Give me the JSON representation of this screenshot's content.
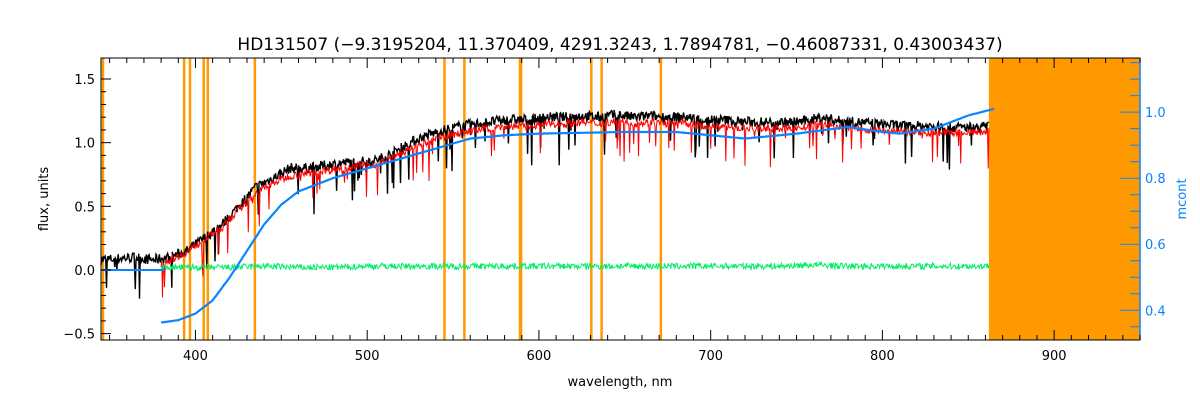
{
  "chart_data": {
    "type": "line",
    "title": "HD131507    (−9.3195204, 11.370409, 4291.3243, 1.7894781, −0.46087331, 0.43003437)",
    "xlabel": "wavelength, nm",
    "ylabel": "flux, units",
    "ylabel_right": "mcont",
    "xlim": [
      345,
      950
    ],
    "ylim": [
      -0.55,
      1.665
    ],
    "ylim_right": [
      0.31,
      1.164
    ],
    "xticks": [
      400,
      500,
      600,
      700,
      800,
      900
    ],
    "xtick_labels": [
      "400",
      "500",
      "600",
      "700",
      "800",
      "900"
    ],
    "yticks": [
      -0.5,
      0.0,
      0.5,
      1.0,
      1.5
    ],
    "ytick_labels": [
      "−0.5",
      "0.0",
      "0.5",
      "1.0",
      "1.5"
    ],
    "yticks_right": [
      0.4,
      0.6,
      0.8,
      1.0
    ],
    "ytick_labels_right": [
      "0.4",
      "0.6",
      "0.8",
      "1.0"
    ],
    "masked_lines_nm": [
      393.4,
      396.8,
      404.8,
      407.2,
      434.6,
      545,
      556.6,
      589.0,
      589.6,
      630.5,
      636.5,
      671
    ],
    "masked_region_nm": [
      862,
      950
    ],
    "colors": {
      "observed": "#000000",
      "model": "#ff0000",
      "residual": "#00ee66",
      "continuum": "#0a84ff",
      "mask": "#ff9900"
    },
    "series": [
      {
        "name": "observed",
        "axis": "left",
        "x": [
          345,
          355,
          365,
          375,
          385,
          395,
          405,
          415,
          425,
          435,
          445,
          455,
          465,
          475,
          485,
          495,
          505,
          515,
          525,
          535,
          545,
          555,
          565,
          575,
          585,
          595,
          605,
          615,
          625,
          635,
          645,
          655,
          665,
          675,
          685,
          695,
          705,
          715,
          725,
          735,
          745,
          755,
          765,
          775,
          785,
          795,
          805,
          815,
          825,
          835,
          845,
          855,
          862
        ],
        "y": [
          0.08,
          0.09,
          0.1,
          0.08,
          0.1,
          0.15,
          0.25,
          0.35,
          0.5,
          0.65,
          0.72,
          0.8,
          0.8,
          0.82,
          0.84,
          0.85,
          0.86,
          0.92,
          1.0,
          1.06,
          1.1,
          1.13,
          1.15,
          1.17,
          1.18,
          1.18,
          1.2,
          1.2,
          1.21,
          1.2,
          1.22,
          1.2,
          1.21,
          1.2,
          1.2,
          1.18,
          1.18,
          1.17,
          1.16,
          1.16,
          1.16,
          1.17,
          1.2,
          1.17,
          1.16,
          1.15,
          1.14,
          1.13,
          1.13,
          1.12,
          1.12,
          1.12,
          1.13
        ]
      },
      {
        "name": "model",
        "axis": "left",
        "x": [
          380,
          385,
          395,
          405,
          415,
          425,
          435,
          445,
          455,
          465,
          475,
          485,
          495,
          505,
          515,
          525,
          535,
          545,
          555,
          565,
          575,
          585,
          595,
          605,
          615,
          625,
          635,
          645,
          655,
          665,
          675,
          685,
          695,
          705,
          715,
          725,
          735,
          745,
          755,
          765,
          775,
          785,
          795,
          805,
          815,
          825,
          835,
          845,
          855,
          862
        ],
        "y": [
          0.05,
          0.08,
          0.14,
          0.24,
          0.33,
          0.47,
          0.6,
          0.68,
          0.74,
          0.76,
          0.78,
          0.8,
          0.82,
          0.83,
          0.88,
          0.95,
          1.0,
          1.05,
          1.08,
          1.1,
          1.12,
          1.13,
          1.13,
          1.15,
          1.15,
          1.16,
          1.15,
          1.17,
          1.15,
          1.16,
          1.15,
          1.15,
          1.13,
          1.13,
          1.12,
          1.11,
          1.11,
          1.11,
          1.12,
          1.15,
          1.12,
          1.11,
          1.1,
          1.09,
          1.08,
          1.08,
          1.08,
          1.08,
          1.08,
          1.09
        ]
      },
      {
        "name": "residual",
        "axis": "left",
        "x": [
          380,
          400,
          420,
          440,
          460,
          480,
          500,
          520,
          540,
          560,
          580,
          600,
          620,
          640,
          660,
          680,
          700,
          720,
          740,
          760,
          780,
          800,
          820,
          840,
          862
        ],
        "y": [
          0.02,
          0.02,
          0.02,
          0.03,
          0.02,
          0.02,
          0.03,
          0.03,
          0.03,
          0.03,
          0.03,
          0.03,
          0.03,
          0.03,
          0.03,
          0.03,
          0.03,
          0.03,
          0.03,
          0.04,
          0.03,
          0.03,
          0.03,
          0.03,
          0.03
        ]
      },
      {
        "name": "continuum",
        "axis": "right",
        "x": [
          380,
          390,
          400,
          410,
          420,
          430,
          440,
          450,
          460,
          480,
          500,
          520,
          540,
          560,
          580,
          600,
          650,
          680,
          700,
          720,
          750,
          780,
          800,
          810,
          830,
          850,
          865
        ],
        "y": [
          0.363,
          0.37,
          0.39,
          0.43,
          0.5,
          0.58,
          0.66,
          0.72,
          0.76,
          0.8,
          0.83,
          0.86,
          0.89,
          0.92,
          0.93,
          0.935,
          0.94,
          0.94,
          0.93,
          0.92,
          0.935,
          0.955,
          0.94,
          0.935,
          0.95,
          0.99,
          1.01
        ]
      },
      {
        "name": "continuum-baseline",
        "axis": "left",
        "x": [
          345,
          382
        ],
        "y": [
          0.0,
          0.0
        ]
      }
    ]
  }
}
